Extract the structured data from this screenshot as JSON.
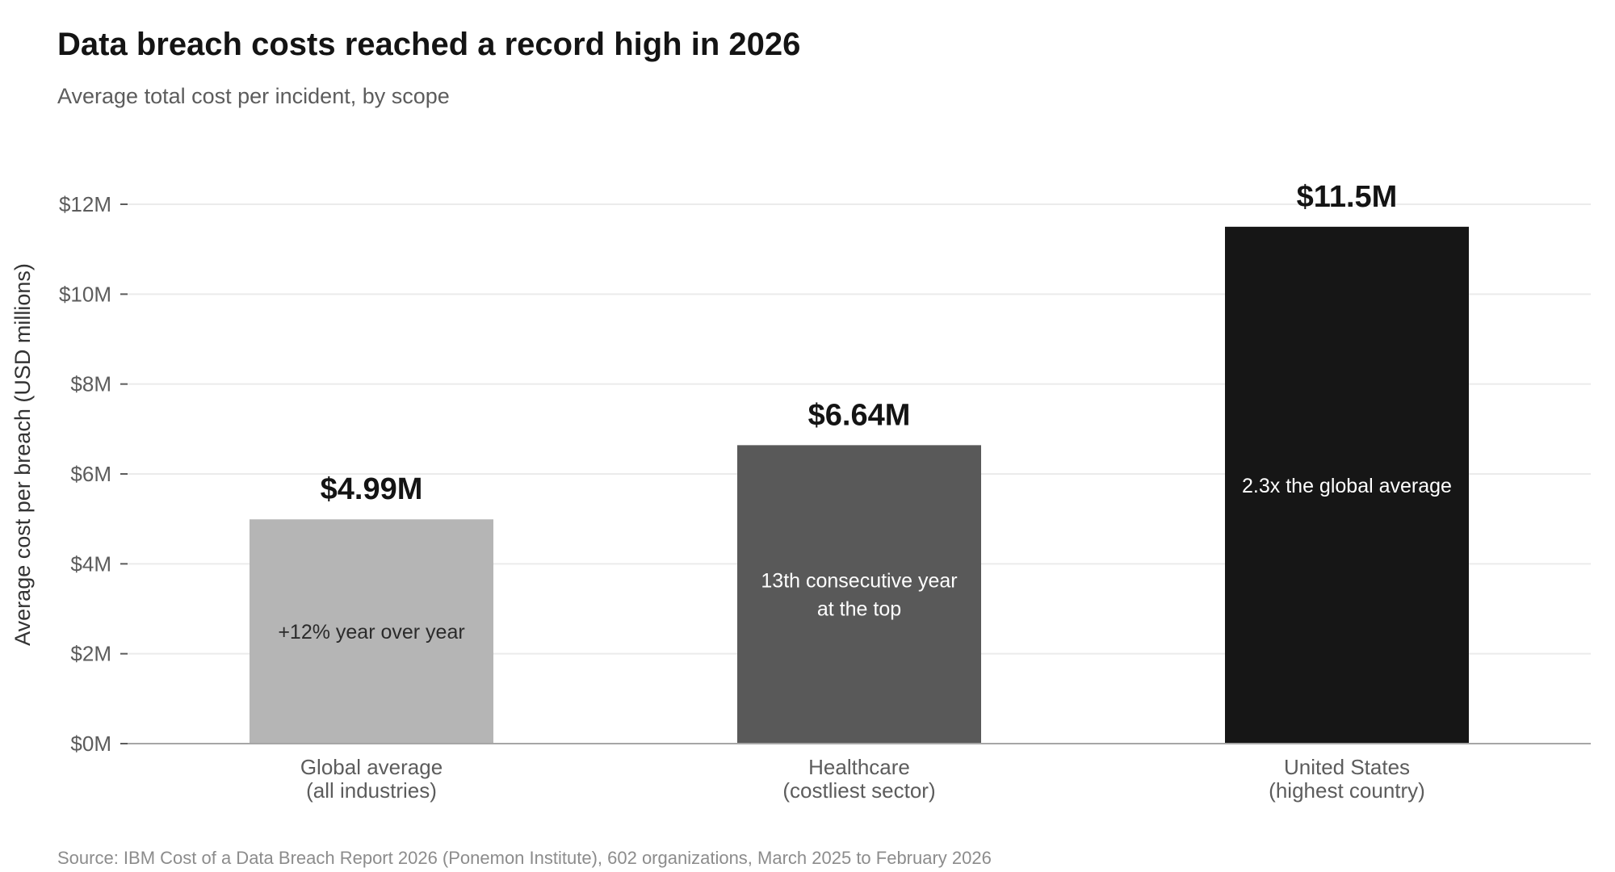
{
  "chart_data": {
    "type": "bar",
    "title": "Data breach costs reached a record high in 2026",
    "subtitle": "Average total cost per incident, by scope",
    "ylabel": "Average cost per breach (USD millions)",
    "xlabel": "",
    "ylim": [
      0,
      12
    ],
    "yticks": [
      0,
      2,
      4,
      6,
      8,
      10,
      12
    ],
    "ytick_labels": [
      "$0M",
      "$2M",
      "$4M",
      "$6M",
      "$8M",
      "$10M",
      "$12M"
    ],
    "grid": true,
    "categories": [
      [
        "Global average",
        "(all industries)"
      ],
      [
        "Healthcare",
        "(costliest sector)"
      ],
      [
        "United States",
        "(highest country)"
      ]
    ],
    "values": [
      4.99,
      6.64,
      11.5
    ],
    "value_labels": [
      "$4.99M",
      "$6.64M",
      "$11.5M"
    ],
    "annotations": [
      [
        "+12% year over year"
      ],
      [
        "13th consecutive year",
        "at the top"
      ],
      [
        "2.3x the global average"
      ]
    ],
    "bar_colors": [
      "#b5b5b5",
      "#595959",
      "#161616"
    ],
    "annotation_colors": [
      "#2b2b2b",
      "#ffffff",
      "#ffffff"
    ],
    "source": "Source: IBM Cost of a Data Breach Report 2026 (Ponemon Institute), 602 organizations, March 2025 to February 2026"
  }
}
